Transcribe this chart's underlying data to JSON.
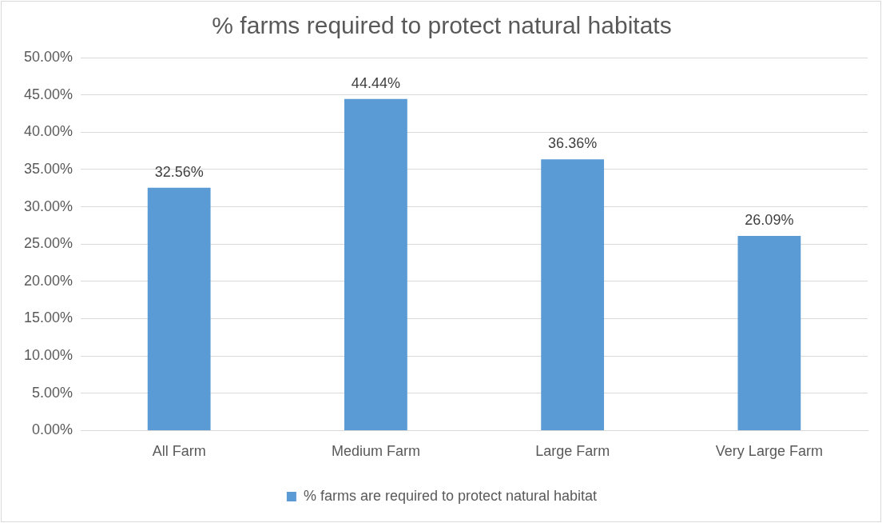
{
  "chart_data": {
    "type": "bar",
    "title": "% farms required to protect natural habitats",
    "categories": [
      "All Farm",
      "Medium Farm",
      "Large Farm",
      "Very Large Farm"
    ],
    "series": [
      {
        "name": "% farms are required to protect natural habitat",
        "color": "#5b9bd5",
        "values": [
          32.56,
          44.44,
          36.36,
          26.09
        ],
        "value_labels": [
          "32.56%",
          "44.44%",
          "36.36%",
          "26.09%"
        ]
      }
    ],
    "ylim": [
      0,
      50
    ],
    "yticks": [
      {
        "value": 0,
        "label": "0.00%"
      },
      {
        "value": 5,
        "label": "5.00%"
      },
      {
        "value": 10,
        "label": "10.00%"
      },
      {
        "value": 15,
        "label": "15.00%"
      },
      {
        "value": 20,
        "label": "20.00%"
      },
      {
        "value": 25,
        "label": "25.00%"
      },
      {
        "value": 30,
        "label": "30.00%"
      },
      {
        "value": 35,
        "label": "35.00%"
      },
      {
        "value": 40,
        "label": "40.00%"
      },
      {
        "value": 45,
        "label": "45.00%"
      },
      {
        "value": 50,
        "label": "50.00%"
      }
    ],
    "grid": "y",
    "legend": "bottom"
  }
}
